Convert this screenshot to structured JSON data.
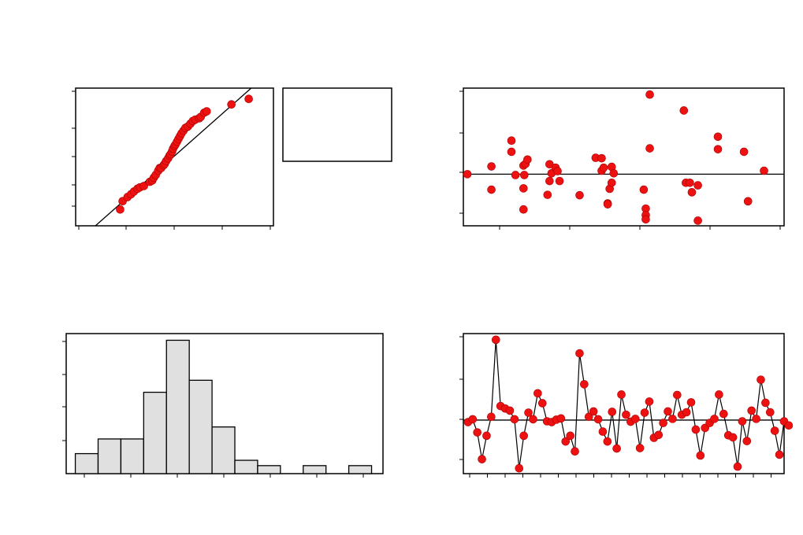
{
  "colors": {
    "marker": "#ee1111",
    "marker_edge": "#aa0000",
    "line": "#000000",
    "bar_fill": "#e0e0e0",
    "bar_edge": "#000000"
  },
  "chart_data": [
    {
      "id": "normal-probability-plot",
      "type": "scatter",
      "title": "",
      "xlabel": "",
      "ylabel": "",
      "xlim": [
        -3,
        1
      ],
      "ylim": [
        0.2,
        99.8
      ],
      "reference_line": {
        "x": [
          -2.6,
          0.55
        ],
        "y": [
          0.2,
          99.8
        ]
      },
      "points": [
        [
          -2.1,
          12
        ],
        [
          -2.05,
          18
        ],
        [
          -1.95,
          21
        ],
        [
          -1.88,
          23
        ],
        [
          -1.82,
          25
        ],
        [
          -1.75,
          27
        ],
        [
          -1.7,
          28
        ],
        [
          -1.62,
          29
        ],
        [
          -1.5,
          32
        ],
        [
          -1.45,
          33
        ],
        [
          -1.42,
          35
        ],
        [
          -1.38,
          37
        ],
        [
          -1.33,
          40
        ],
        [
          -1.3,
          42
        ],
        [
          -1.27,
          42
        ],
        [
          -1.22,
          44
        ],
        [
          -1.2,
          45
        ],
        [
          -1.17,
          47
        ],
        [
          -1.13,
          49
        ],
        [
          -1.1,
          51
        ],
        [
          -1.08,
          52
        ],
        [
          -1.05,
          54
        ],
        [
          -1.03,
          56
        ],
        [
          -1.0,
          58
        ],
        [
          -0.98,
          59
        ],
        [
          -0.95,
          61
        ],
        [
          -0.92,
          63
        ],
        [
          -0.89,
          65
        ],
        [
          -0.86,
          67
        ],
        [
          -0.82,
          69
        ],
        [
          -0.78,
          71
        ],
        [
          -0.73,
          72
        ],
        [
          -0.68,
          74
        ],
        [
          -0.63,
          76
        ],
        [
          -0.58,
          77
        ],
        [
          -0.5,
          78
        ],
        [
          -0.47,
          79
        ],
        [
          -0.4,
          82
        ],
        [
          -0.35,
          83
        ],
        [
          0.15,
          88
        ],
        [
          0.5,
          92
        ]
      ]
    },
    {
      "id": "residuals-versus-fits",
      "type": "scatter",
      "title": "",
      "xlabel": "",
      "ylabel": "",
      "xlim": [
        0,
        8
      ],
      "ylim": [
        -1.2,
        2.0
      ],
      "reference_line_y": 0,
      "points": [
        [
          0.1,
          0
        ],
        [
          0.7,
          0.18
        ],
        [
          0.7,
          -0.36
        ],
        [
          1.2,
          0.78
        ],
        [
          1.2,
          0.52
        ],
        [
          1.3,
          -0.02
        ],
        [
          1.5,
          0.2
        ],
        [
          1.52,
          -0.02
        ],
        [
          1.55,
          0.24
        ],
        [
          1.6,
          0.34
        ],
        [
          1.5,
          -0.33
        ],
        [
          1.5,
          -0.82
        ],
        [
          2.1,
          -0.48
        ],
        [
          2.15,
          0.23
        ],
        [
          2.15,
          -0.16
        ],
        [
          2.2,
          0.02
        ],
        [
          2.3,
          0.15
        ],
        [
          2.35,
          0.07
        ],
        [
          2.4,
          -0.16
        ],
        [
          2.9,
          -0.49
        ],
        [
          3.3,
          0.38
        ],
        [
          3.45,
          0.37
        ],
        [
          3.45,
          0.08
        ],
        [
          3.5,
          0.15
        ],
        [
          3.6,
          -0.68
        ],
        [
          3.6,
          -0.7
        ],
        [
          3.65,
          -0.34
        ],
        [
          3.7,
          0.17
        ],
        [
          3.7,
          -0.2
        ],
        [
          3.75,
          0.02
        ],
        [
          4.5,
          -0.36
        ],
        [
          4.55,
          -0.8
        ],
        [
          4.55,
          -0.95
        ],
        [
          4.55,
          -1.05
        ],
        [
          4.65,
          1.85
        ],
        [
          4.65,
          0.6
        ],
        [
          5.5,
          1.48
        ],
        [
          5.55,
          -0.2
        ],
        [
          5.65,
          -0.2
        ],
        [
          5.7,
          -0.42
        ],
        [
          5.85,
          -0.26
        ],
        [
          5.85,
          -1.08
        ],
        [
          6.35,
          0.87
        ],
        [
          6.35,
          0.58
        ],
        [
          7.0,
          0.52
        ],
        [
          7.1,
          -0.63
        ],
        [
          7.5,
          0.08
        ]
      ]
    },
    {
      "id": "histogram-of-residuals",
      "type": "bar",
      "title": "",
      "xlabel": "",
      "ylabel": "",
      "ylim": [
        0,
        10.5
      ],
      "bins": [
        {
          "start": 0,
          "end": 1,
          "count": 1.5
        },
        {
          "start": 1,
          "end": 2,
          "count": 2.6
        },
        {
          "start": 2,
          "end": 3,
          "count": 2.6
        },
        {
          "start": 3,
          "end": 4,
          "count": 6.1
        },
        {
          "start": 4,
          "end": 5,
          "count": 10.0
        },
        {
          "start": 5,
          "end": 6,
          "count": 7.0
        },
        {
          "start": 6,
          "end": 7,
          "count": 3.5
        },
        {
          "start": 7,
          "end": 8,
          "count": 1.0
        },
        {
          "start": 8,
          "end": 9,
          "count": 0.6
        },
        {
          "start": 9,
          "end": 10,
          "count": 0
        },
        {
          "start": 10,
          "end": 11,
          "count": 0.6
        },
        {
          "start": 11,
          "end": 12,
          "count": 0
        },
        {
          "start": 12,
          "end": 13,
          "count": 0.6
        }
      ],
      "xlim": [
        -0.4,
        13.5
      ]
    },
    {
      "id": "residuals-versus-order",
      "type": "line",
      "title": "",
      "xlabel": "",
      "ylabel": "",
      "reference_line_y": 0,
      "ylim": [
        -1.3,
        2.1
      ],
      "xlim": [
        0,
        69
      ],
      "values": [
        -0.05,
        0.02,
        -0.3,
        -0.95,
        -0.38,
        0.08,
        1.95,
        0.34,
        0.28,
        0.23,
        0.02,
        -1.17,
        -0.38,
        0.18,
        0.02,
        0.65,
        0.41,
        -0.03,
        -0.05,
        0.01,
        0.04,
        -0.52,
        -0.38,
        -0.76,
        1.62,
        0.87,
        0.08,
        0.21,
        0.02,
        -0.28,
        -0.52,
        0.2,
        -0.69,
        0.62,
        0.13,
        -0.04,
        0.03,
        -0.68,
        0.18,
        0.45,
        -0.43,
        -0.36,
        -0.07,
        0.21,
        0.03,
        0.61,
        0.13,
        0.19,
        0.43,
        -0.23,
        -0.86,
        -0.19,
        -0.07,
        0.03,
        0.62,
        0.15,
        -0.37,
        -0.42,
        -1.13,
        -0.03,
        -0.51,
        0.23,
        0.03,
        0.98,
        0.42,
        0.19,
        -0.26,
        -0.84,
        -0.03,
        -0.13
      ]
    }
  ]
}
